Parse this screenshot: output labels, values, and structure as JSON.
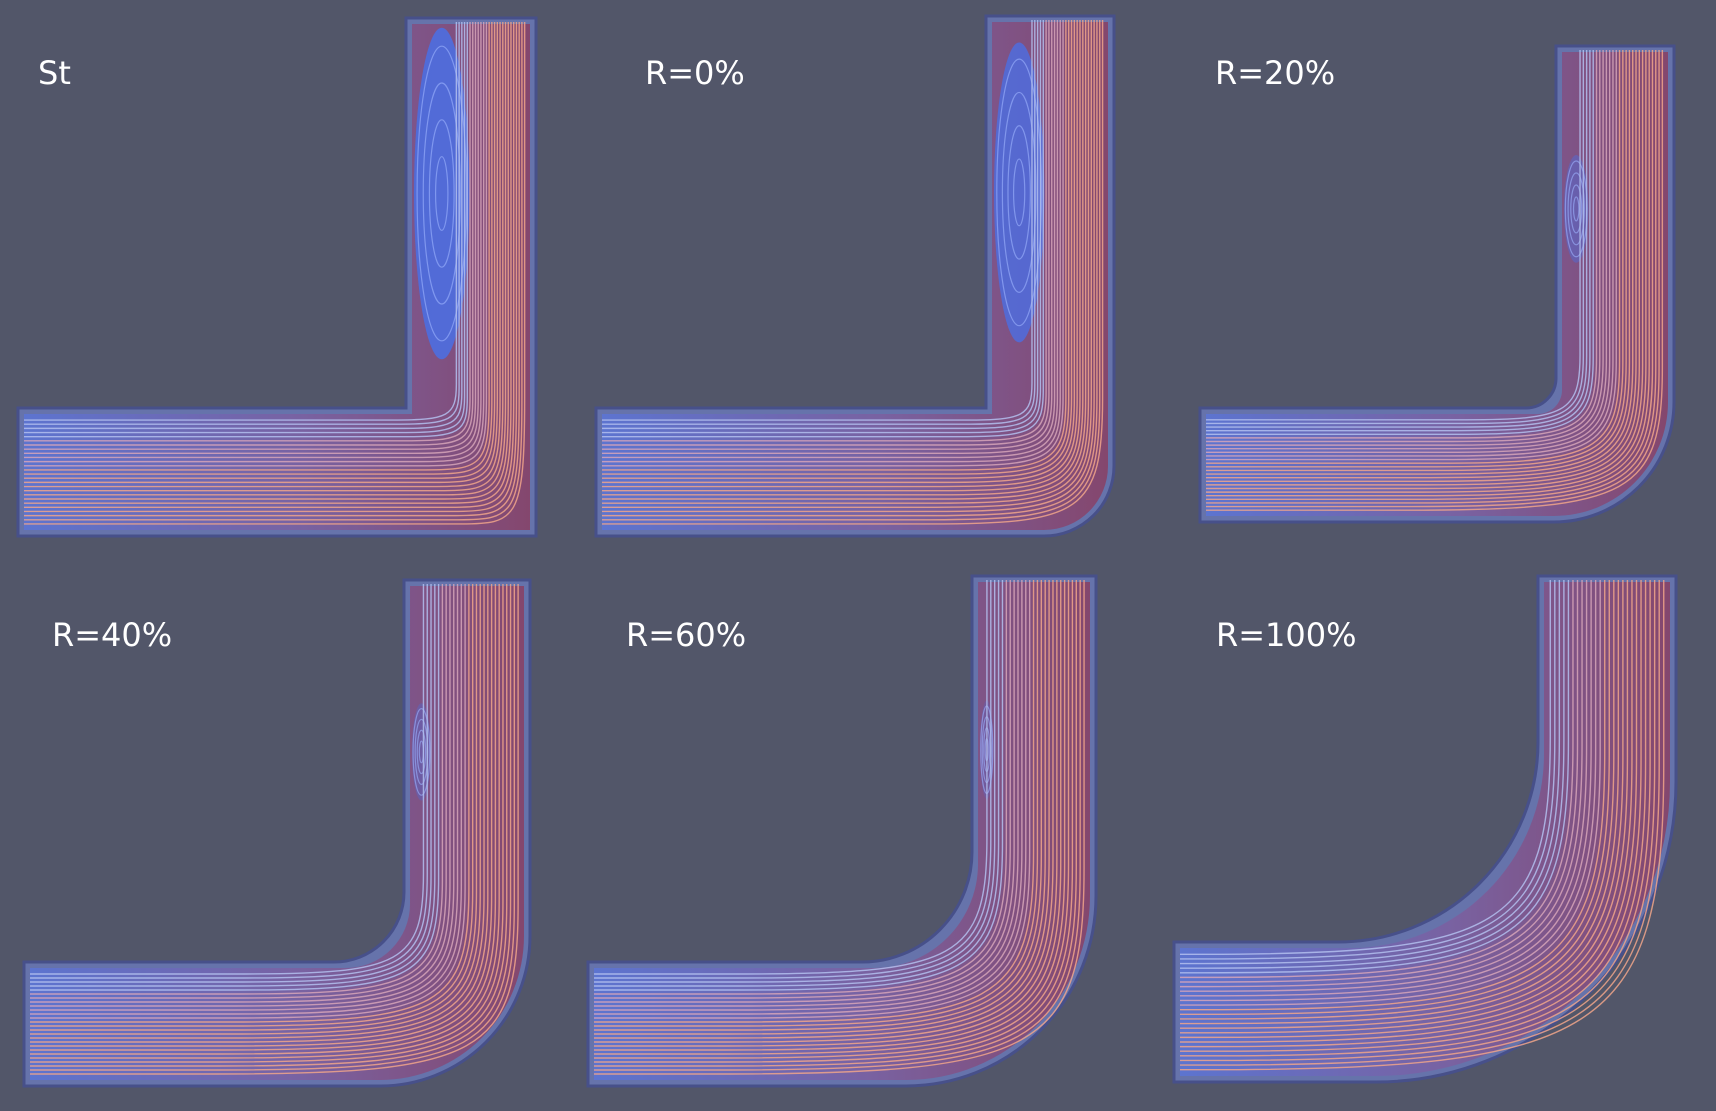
{
  "panels": [
    {
      "label": "St"
    },
    {
      "label": "R=0%"
    },
    {
      "label": "R=20%"
    },
    {
      "label": "R=40%"
    },
    {
      "label": "R=60%"
    },
    {
      "label": "R=100%"
    }
  ],
  "colors": {
    "background": "#525669",
    "wall": "#5a6aa8",
    "recirculation": "#4f6fd6",
    "core_flow_hot": "#8a3a5c",
    "streamline_warm": "#f2a98a",
    "streamline_cool": "#aab8ea"
  }
}
